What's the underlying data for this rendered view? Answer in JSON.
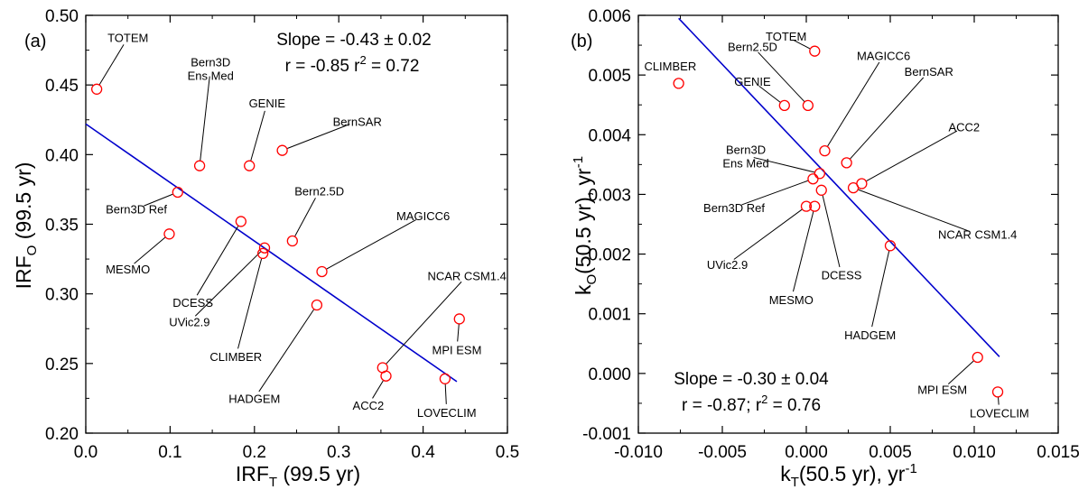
{
  "chart_data": [
    {
      "type": "scatter",
      "panel_label": "(a)",
      "xlabel": {
        "main": "IRF",
        "sub": "T",
        "rest": " (99.5 yr)"
      },
      "ylabel": {
        "main": "IRF",
        "sub": "O",
        "rest": " (99.5 yr)"
      },
      "xlim": [
        0,
        0.5
      ],
      "ylim": [
        0.2,
        0.5
      ],
      "xticks": [
        0,
        0.1,
        0.2,
        0.3,
        0.4,
        0.5
      ],
      "xtick_labels": [
        "0.0",
        "0.1",
        "0.2",
        "0.3",
        "0.4",
        "0.5"
      ],
      "yticks": [
        0.2,
        0.25,
        0.3,
        0.35,
        0.4,
        0.45,
        0.5
      ],
      "ytick_labels": [
        "0.20",
        "0.25",
        "0.30",
        "0.35",
        "0.40",
        "0.45",
        "0.50"
      ],
      "stats": [
        "Slope = -0.43 ± 0.02",
        "r = -0.85 r",
        "2",
        " = 0.72"
      ],
      "fit_line": {
        "x": [
          0.0,
          0.44
        ],
        "y": [
          0.422,
          0.237
        ],
        "color": "#0000cc"
      },
      "marker_color": "#ff0000",
      "points": [
        {
          "label": "TOTEM",
          "x": 0.013,
          "y": 0.447,
          "lx": 0.05,
          "ly": 0.484
        },
        {
          "label": "Bern3D Ref",
          "x": 0.109,
          "y": 0.373,
          "lx": 0.06,
          "ly": 0.361
        },
        {
          "label": "MESMO",
          "x": 0.099,
          "y": 0.343,
          "lx": 0.05,
          "ly": 0.318
        },
        {
          "label": "Bern3D\nEns Med",
          "x": 0.135,
          "y": 0.392,
          "lx": 0.148,
          "ly": 0.462
        },
        {
          "label": "GENIE",
          "x": 0.194,
          "y": 0.392,
          "lx": 0.215,
          "ly": 0.437
        },
        {
          "label": "BernSAR",
          "x": 0.233,
          "y": 0.403,
          "lx": 0.322,
          "ly": 0.424
        },
        {
          "label": "DCESS",
          "x": 0.184,
          "y": 0.352,
          "lx": 0.127,
          "ly": 0.294
        },
        {
          "label": "UVic2.9",
          "x": 0.212,
          "y": 0.333,
          "lx": 0.123,
          "ly": 0.28
        },
        {
          "label": "CLIMBER",
          "x": 0.21,
          "y": 0.329,
          "lx": 0.178,
          "ly": 0.255
        },
        {
          "label": "Bern2.5D",
          "x": 0.245,
          "y": 0.338,
          "lx": 0.277,
          "ly": 0.374
        },
        {
          "label": "MAGICC6",
          "x": 0.28,
          "y": 0.316,
          "lx": 0.4,
          "ly": 0.356
        },
        {
          "label": "HADGEM",
          "x": 0.274,
          "y": 0.292,
          "lx": 0.2,
          "ly": 0.225
        },
        {
          "label": "NCAR CSM1.4",
          "x": 0.352,
          "y": 0.247,
          "lx": 0.452,
          "ly": 0.313
        },
        {
          "label": "ACC2",
          "x": 0.356,
          "y": 0.241,
          "lx": 0.335,
          "ly": 0.22
        },
        {
          "label": "LOVECLIM",
          "x": 0.426,
          "y": 0.239,
          "lx": 0.428,
          "ly": 0.215
        },
        {
          "label": "MPI ESM",
          "x": 0.443,
          "y": 0.282,
          "lx": 0.44,
          "ly": 0.26
        }
      ]
    },
    {
      "type": "scatter",
      "panel_label": "(b)",
      "xlabel": {
        "main": "k",
        "sub": "T",
        "rest": "(50.5 yr), yr",
        "sup": "-1"
      },
      "ylabel": {
        "main": "k",
        "sub": "O",
        "rest": "(50.5 yr), yr",
        "sup": "-1"
      },
      "xlim": [
        -0.01,
        0.015
      ],
      "ylim": [
        -0.001,
        0.006
      ],
      "xticks": [
        -0.01,
        -0.005,
        0,
        0.005,
        0.01,
        0.015
      ],
      "xtick_labels": [
        "-0.010",
        "-0.005",
        "0.000",
        "0.005",
        "0.010",
        "0.015"
      ],
      "yticks": [
        -0.001,
        0,
        0.001,
        0.002,
        0.003,
        0.004,
        0.005,
        0.006
      ],
      "ytick_labels": [
        "-0.001",
        "0.000",
        "0.001",
        "0.002",
        "0.003",
        "0.004",
        "0.005",
        "0.006"
      ],
      "stats": [
        "Slope = -0.30 ± 0.04",
        "r = -0.87; r",
        "2",
        " = 0.76"
      ],
      "fit_line": {
        "x": [
          -0.0076,
          0.0115
        ],
        "y": [
          0.00595,
          0.00028
        ],
        "color": "#0000cc"
      },
      "marker_color": "#ff0000",
      "points": [
        {
          "label": "TOTEM",
          "x": 0.0005,
          "y": 0.0054,
          "lx": -0.0012,
          "ly": 0.00565
        },
        {
          "label": "CLIMBER",
          "x": -0.0076,
          "y": 0.00486,
          "lx": -0.0081,
          "ly": 0.00515
        },
        {
          "label": "Bern2.5D",
          "x": 0.0001,
          "y": 0.00449,
          "lx": -0.0032,
          "ly": 0.00548
        },
        {
          "label": "GENIE",
          "x": -0.0013,
          "y": 0.00449,
          "lx": -0.0032,
          "ly": 0.0049
        },
        {
          "label": "MAGICC6",
          "x": 0.0011,
          "y": 0.00373,
          "lx": 0.0046,
          "ly": 0.00533
        },
        {
          "label": "BernSAR",
          "x": 0.0024,
          "y": 0.00353,
          "lx": 0.0073,
          "ly": 0.00506
        },
        {
          "label": "ACC2",
          "x": 0.0033,
          "y": 0.00318,
          "lx": 0.0094,
          "ly": 0.00413
        },
        {
          "label": "Bern3D\nEns Med",
          "x": 0.0008,
          "y": 0.00335,
          "lx": -0.0036,
          "ly": 0.00365
        },
        {
          "label": "Bern3D Ref",
          "x": 0.0004,
          "y": 0.00326,
          "lx": -0.0043,
          "ly": 0.00278
        },
        {
          "label": "NCAR CSM1.4",
          "x": 0.0028,
          "y": 0.00311,
          "lx": 0.0102,
          "ly": 0.00233
        },
        {
          "label": "DCESS",
          "x": 0.0009,
          "y": 0.00307,
          "lx": 0.0021,
          "ly": 0.00165
        },
        {
          "label": "UVic2.9",
          "x": 0.0,
          "y": 0.0028,
          "lx": -0.0047,
          "ly": 0.00183
        },
        {
          "label": "MESMO",
          "x": 0.0005,
          "y": 0.0028,
          "lx": -0.0009,
          "ly": 0.00124
        },
        {
          "label": "HADGEM",
          "x": 0.005,
          "y": 0.00214,
          "lx": 0.0038,
          "ly": 0.00065
        },
        {
          "label": "MPI ESM",
          "x": 0.0102,
          "y": 0.00027,
          "lx": 0.0081,
          "ly": -0.00027
        },
        {
          "label": "LOVECLIM",
          "x": 0.0114,
          "y": -0.00031,
          "lx": 0.0115,
          "ly": -0.00066
        }
      ]
    }
  ]
}
